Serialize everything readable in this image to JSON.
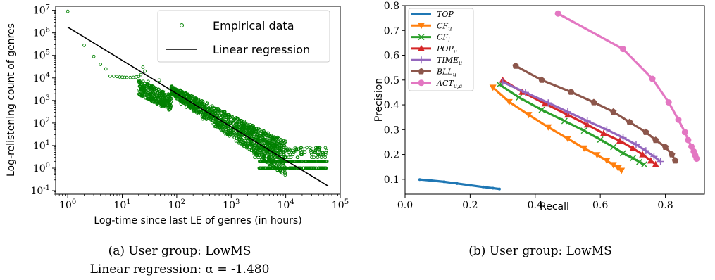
{
  "figure_a": {
    "caption_line1": "(a) User group: LowMS",
    "caption_line2": "Linear regression: α = -1.480"
  },
  "figure_b": {
    "caption": "(b) User group: LowMS"
  },
  "chart_data": [
    {
      "type": "scatter",
      "xlabel": "Log-time since last LE of genres (in hours)",
      "ylabel": "Log-relistening count of genres",
      "xscale": "log",
      "yscale": "log",
      "xlim": [
        0.6,
        100000
      ],
      "ylim": [
        0.07,
        15000000
      ],
      "x_ticks": [
        "10^0",
        "10^1",
        "10^2",
        "10^3",
        "10^4",
        "10^5"
      ],
      "y_ticks": [
        "10^-1",
        "10^0",
        "10^1",
        "10^2",
        "10^3",
        "10^4",
        "10^5",
        "10^6",
        "10^7"
      ],
      "legend_position": "top-right",
      "series": [
        {
          "name": "Empirical data",
          "color": "#008000",
          "marker": "open-circle",
          "points": [
            [
              1,
              9000000
            ],
            [
              2,
              280000
            ],
            [
              3,
              90000
            ],
            [
              4,
              40000
            ],
            [
              5,
              25000
            ],
            [
              6,
              12000
            ],
            [
              7,
              12000
            ],
            [
              8,
              11500
            ],
            [
              9,
              11000
            ],
            [
              10,
              10800
            ],
            [
              11,
              10600
            ],
            [
              12,
              10500
            ],
            [
              14,
              10400
            ],
            [
              16,
              10600
            ],
            [
              18,
              11000
            ],
            [
              20,
              11500
            ],
            [
              22,
              14000
            ],
            [
              24,
              30000
            ],
            [
              26,
              20000
            ],
            [
              30,
              7000
            ],
            [
              35,
              3000
            ],
            [
              40,
              1500
            ],
            [
              48,
              8000
            ],
            [
              55,
              2500
            ],
            [
              60,
              1200
            ],
            [
              72,
              3500
            ],
            [
              80,
              1200
            ],
            [
              100,
              1200
            ],
            [
              120,
              700
            ],
            [
              150,
              500
            ],
            [
              200,
              350
            ],
            [
              300,
              150
            ],
            [
              500,
              70
            ],
            [
              800,
              30
            ],
            [
              1500,
              12
            ],
            [
              3000,
              7
            ],
            [
              5000,
              4
            ],
            [
              10000,
              3
            ],
            [
              20000,
              4
            ],
            [
              30000,
              3
            ],
            [
              40000,
              4
            ],
            [
              55000,
              5
            ]
          ]
        },
        {
          "name": "Linear regression",
          "color": "#000000",
          "marker": "line",
          "points": [
            [
              1,
              1800000
            ],
            [
              60000,
              0.16
            ]
          ]
        }
      ]
    },
    {
      "type": "line",
      "xlabel": "Recall",
      "ylabel": "Precision",
      "xlim": [
        0.0,
        0.92
      ],
      "ylim": [
        0.04,
        0.8
      ],
      "x_ticks": [
        0.0,
        0.2,
        0.4,
        0.6,
        0.8
      ],
      "y_ticks": [
        0.1,
        0.2,
        0.3,
        0.4,
        0.5,
        0.6,
        0.7,
        0.8
      ],
      "legend_position": "top-left",
      "series": [
        {
          "name": "TOP",
          "name_sub": "",
          "color": "#1f77b4",
          "marker": "point",
          "points": [
            [
              0.045,
              0.099
            ],
            [
              0.08,
              0.095
            ],
            [
              0.12,
              0.09
            ],
            [
              0.16,
              0.083
            ],
            [
              0.2,
              0.076
            ],
            [
              0.24,
              0.069
            ],
            [
              0.27,
              0.064
            ],
            [
              0.29,
              0.061
            ]
          ]
        },
        {
          "name": "CF",
          "name_sub": "u",
          "color": "#ff7f0e",
          "marker": "tri-down",
          "points": [
            [
              0.27,
              0.47
            ],
            [
              0.32,
              0.412
            ],
            [
              0.38,
              0.36
            ],
            [
              0.44,
              0.31
            ],
            [
              0.5,
              0.264
            ],
            [
              0.55,
              0.225
            ],
            [
              0.59,
              0.198
            ],
            [
              0.62,
              0.175
            ],
            [
              0.64,
              0.158
            ],
            [
              0.655,
              0.145
            ],
            [
              0.665,
              0.135
            ]
          ]
        },
        {
          "name": "CF",
          "name_sub": "i",
          "color": "#2ca02c",
          "marker": "x",
          "points": [
            [
              0.29,
              0.482
            ],
            [
              0.35,
              0.43
            ],
            [
              0.42,
              0.38
            ],
            [
              0.49,
              0.335
            ],
            [
              0.55,
              0.296
            ],
            [
              0.6,
              0.26
            ],
            [
              0.64,
              0.23
            ],
            [
              0.67,
              0.205
            ],
            [
              0.7,
              0.185
            ],
            [
              0.72,
              0.17
            ],
            [
              0.735,
              0.16
            ]
          ]
        },
        {
          "name": "POP",
          "name_sub": "u",
          "color": "#d62728",
          "marker": "tri-up",
          "points": [
            [
              0.3,
              0.5
            ],
            [
              0.36,
              0.452
            ],
            [
              0.43,
              0.405
            ],
            [
              0.5,
              0.36
            ],
            [
              0.56,
              0.32
            ],
            [
              0.61,
              0.285
            ],
            [
              0.66,
              0.255
            ],
            [
              0.7,
              0.225
            ],
            [
              0.73,
              0.2
            ],
            [
              0.755,
              0.175
            ],
            [
              0.77,
              0.16
            ]
          ]
        },
        {
          "name": "TIME",
          "name_sub": "u",
          "color": "#9467bd",
          "marker": "plus",
          "points": [
            [
              0.3,
              0.492
            ],
            [
              0.37,
              0.45
            ],
            [
              0.44,
              0.408
            ],
            [
              0.5,
              0.372
            ],
            [
              0.56,
              0.335
            ],
            [
              0.62,
              0.3
            ],
            [
              0.67,
              0.268
            ],
            [
              0.71,
              0.24
            ],
            [
              0.74,
              0.215
            ],
            [
              0.765,
              0.192
            ],
            [
              0.785,
              0.172
            ]
          ]
        },
        {
          "name": "BLL",
          "name_sub": "u",
          "color": "#8c564b",
          "marker": "pentagon",
          "points": [
            [
              0.34,
              0.557
            ],
            [
              0.42,
              0.5
            ],
            [
              0.51,
              0.452
            ],
            [
              0.58,
              0.41
            ],
            [
              0.64,
              0.372
            ],
            [
              0.69,
              0.33
            ],
            [
              0.74,
              0.29
            ],
            [
              0.77,
              0.258
            ],
            [
              0.8,
              0.23
            ],
            [
              0.82,
              0.2
            ],
            [
              0.83,
              0.175
            ]
          ]
        },
        {
          "name": "ACT",
          "name_sub": "u,a",
          "color": "#e377c2",
          "marker": "circle",
          "points": [
            [
              0.47,
              0.768
            ],
            [
              0.67,
              0.625
            ],
            [
              0.76,
              0.505
            ],
            [
              0.81,
              0.41
            ],
            [
              0.84,
              0.34
            ],
            [
              0.86,
              0.29
            ],
            [
              0.87,
              0.258
            ],
            [
              0.88,
              0.232
            ],
            [
              0.887,
              0.212
            ],
            [
              0.892,
              0.196
            ],
            [
              0.896,
              0.183
            ]
          ]
        }
      ]
    }
  ]
}
